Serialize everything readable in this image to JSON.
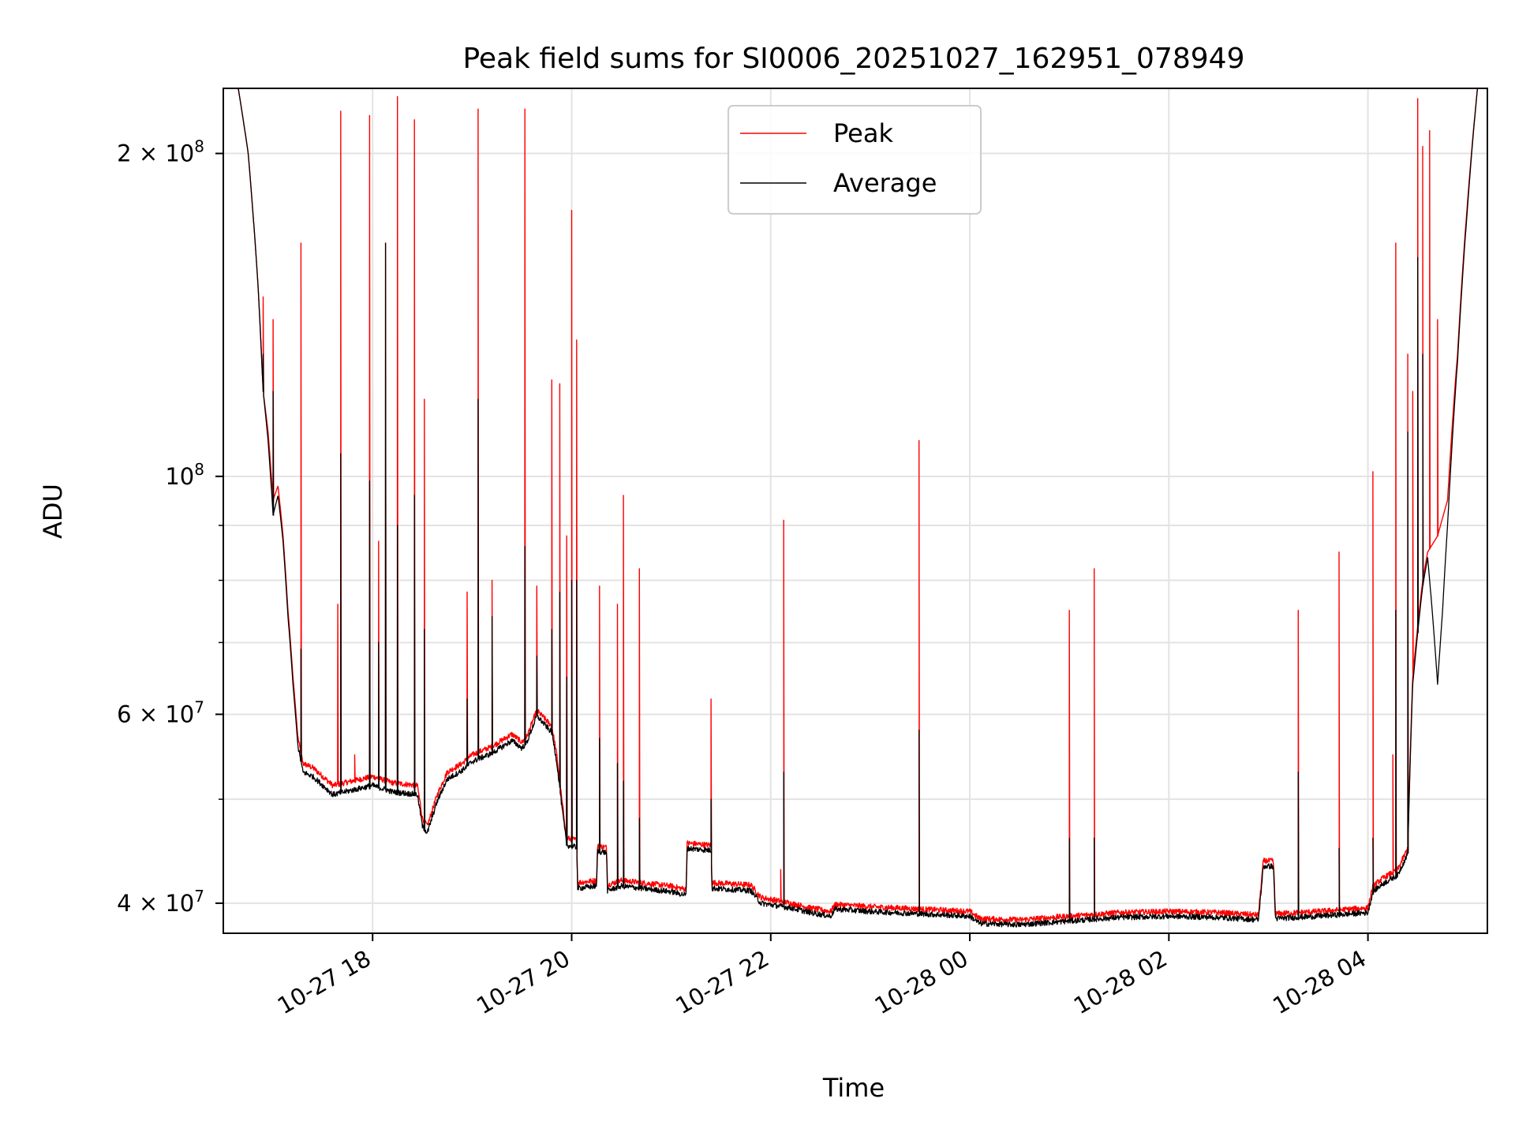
{
  "chart_data": {
    "type": "line",
    "title": "Peak field sums for SI0006_20251027_162951_078949",
    "xlabel": "Time",
    "ylabel": "ADU",
    "yscale": "log",
    "ylim": [
      37500000,
      230000000
    ],
    "xlim_hours": [
      -1.5,
      11.2
    ],
    "grid": true,
    "legend_position": "upper center",
    "x_ticks": [
      {
        "label": "10-27 18",
        "hour": 0
      },
      {
        "label": "10-27 20",
        "hour": 2
      },
      {
        "label": "10-27 22",
        "hour": 4
      },
      {
        "label": "10-28 00",
        "hour": 6
      },
      {
        "label": "10-28 02",
        "hour": 8
      },
      {
        "label": "10-28 04",
        "hour": 10
      }
    ],
    "y_ticks_major": [
      {
        "mantissa": "",
        "exponent": "8",
        "value": 100000000
      },
      {
        "mantissa": "2 ×",
        "exponent": "8",
        "value": 200000000
      },
      {
        "mantissa": "4 ×",
        "exponent": "7",
        "value": 40000000
      },
      {
        "mantissa": "6 ×",
        "exponent": "7",
        "value": 60000000
      }
    ],
    "y_ticks_minor": [
      50000000,
      70000000,
      80000000,
      90000000
    ],
    "series": [
      {
        "name": "Peak",
        "color": "#ff0000",
        "baseline": [
          [
            -1.5,
            230000000
          ],
          [
            -1.35,
            230000000
          ],
          [
            -1.25,
            200000000
          ],
          [
            -1.15,
            150000000
          ],
          [
            -1.1,
            120000000
          ],
          [
            -1.05,
            110000000
          ],
          [
            -1.0,
            95000000
          ],
          [
            -0.95,
            98000000
          ],
          [
            -0.9,
            88000000
          ],
          [
            -0.85,
            75000000
          ],
          [
            -0.8,
            65000000
          ],
          [
            -0.75,
            57000000
          ],
          [
            -0.7,
            54000000
          ],
          [
            -0.6,
            53500000
          ],
          [
            -0.5,
            52500000
          ],
          [
            -0.4,
            51500000
          ],
          [
            -0.2,
            52000000
          ],
          [
            0.0,
            52500000
          ],
          [
            0.2,
            51800000
          ],
          [
            0.45,
            51500000
          ],
          [
            0.5,
            48000000
          ],
          [
            0.55,
            47200000
          ],
          [
            0.65,
            50500000
          ],
          [
            0.75,
            53000000
          ],
          [
            0.9,
            54000000
          ],
          [
            1.0,
            55000000
          ],
          [
            1.2,
            56000000
          ],
          [
            1.4,
            57500000
          ],
          [
            1.5,
            56500000
          ],
          [
            1.55,
            57200000
          ],
          [
            1.65,
            60500000
          ],
          [
            1.8,
            58500000
          ],
          [
            1.85,
            55000000
          ],
          [
            1.9,
            50000000
          ],
          [
            1.95,
            46000000
          ],
          [
            2.05,
            45800000
          ],
          [
            2.06,
            41800000
          ],
          [
            2.25,
            42000000
          ],
          [
            2.26,
            45200000
          ],
          [
            2.35,
            45100000
          ],
          [
            2.36,
            41600000
          ],
          [
            2.5,
            42000000
          ],
          [
            2.6,
            41900000
          ],
          [
            3.0,
            41500000
          ],
          [
            3.15,
            41200000
          ],
          [
            3.16,
            45500000
          ],
          [
            3.4,
            45300000
          ],
          [
            3.41,
            41800000
          ],
          [
            3.8,
            41600000
          ],
          [
            3.9,
            40500000
          ],
          [
            4.2,
            40000000
          ],
          [
            4.4,
            39600000
          ],
          [
            4.6,
            39300000
          ],
          [
            4.65,
            39900000
          ],
          [
            5.0,
            39700000
          ],
          [
            5.5,
            39500000
          ],
          [
            6.0,
            39300000
          ],
          [
            6.1,
            38700000
          ],
          [
            6.5,
            38600000
          ],
          [
            7.0,
            38900000
          ],
          [
            7.5,
            39200000
          ],
          [
            8.0,
            39300000
          ],
          [
            8.5,
            39200000
          ],
          [
            8.9,
            39000000
          ],
          [
            8.95,
            43800000
          ],
          [
            9.05,
            43800000
          ],
          [
            9.07,
            39100000
          ],
          [
            9.5,
            39300000
          ],
          [
            10.0,
            39600000
          ],
          [
            10.05,
            41500000
          ],
          [
            10.15,
            42200000
          ],
          [
            10.3,
            43000000
          ],
          [
            10.4,
            45000000
          ],
          [
            10.45,
            65000000
          ],
          [
            10.55,
            80000000
          ],
          [
            10.6,
            85000000
          ],
          [
            10.7,
            88000000
          ],
          [
            10.8,
            95000000
          ],
          [
            10.9,
            130000000
          ],
          [
            11.0,
            180000000
          ],
          [
            11.1,
            230000000
          ],
          [
            11.2,
            230000000
          ]
        ],
        "spikes": [
          [
            -1.1,
            147000000
          ],
          [
            -1.0,
            140000000
          ],
          [
            -0.72,
            165000000
          ],
          [
            -0.35,
            76000000
          ],
          [
            -0.32,
            219000000
          ],
          [
            -0.18,
            55000000
          ],
          [
            -0.03,
            217000000
          ],
          [
            0.06,
            87000000
          ],
          [
            0.13,
            165000000
          ],
          [
            0.25,
            226000000
          ],
          [
            0.42,
            215000000
          ],
          [
            0.52,
            118000000
          ],
          [
            0.95,
            78000000
          ],
          [
            1.06,
            220000000
          ],
          [
            1.2,
            80000000
          ],
          [
            1.53,
            220000000
          ],
          [
            1.65,
            79000000
          ],
          [
            1.8,
            123000000
          ],
          [
            1.88,
            122000000
          ],
          [
            1.95,
            88000000
          ],
          [
            2.0,
            177000000
          ],
          [
            2.05,
            134000000
          ],
          [
            2.28,
            79000000
          ],
          [
            2.46,
            76000000
          ],
          [
            2.52,
            96000000
          ],
          [
            2.68,
            82000000
          ],
          [
            3.4,
            62000000
          ],
          [
            4.1,
            43000000
          ],
          [
            4.13,
            91000000
          ],
          [
            5.49,
            108000000
          ],
          [
            7.0,
            75000000
          ],
          [
            7.25,
            82000000
          ],
          [
            9.3,
            75000000
          ],
          [
            9.71,
            85000000
          ],
          [
            10.05,
            101000000
          ],
          [
            10.25,
            55000000
          ],
          [
            10.28,
            165000000
          ],
          [
            10.4,
            130000000
          ],
          [
            10.45,
            120000000
          ],
          [
            10.5,
            225000000
          ],
          [
            10.55,
            203000000
          ],
          [
            10.62,
            210000000
          ],
          [
            10.7,
            140000000
          ]
        ]
      },
      {
        "name": "Average",
        "color": "#000000",
        "baseline": [
          [
            -1.5,
            230000000
          ],
          [
            -1.35,
            230000000
          ],
          [
            -1.25,
            200000000
          ],
          [
            -1.15,
            150000000
          ],
          [
            -1.1,
            120000000
          ],
          [
            -1.05,
            108000000
          ],
          [
            -1.0,
            92000000
          ],
          [
            -0.95,
            96000000
          ],
          [
            -0.9,
            87000000
          ],
          [
            -0.85,
            74000000
          ],
          [
            -0.8,
            64000000
          ],
          [
            -0.75,
            56000000
          ],
          [
            -0.7,
            53000000
          ],
          [
            -0.6,
            52500000
          ],
          [
            -0.5,
            51500000
          ],
          [
            -0.4,
            50500000
          ],
          [
            -0.2,
            51000000
          ],
          [
            0.0,
            51500000
          ],
          [
            0.2,
            50800000
          ],
          [
            0.45,
            50500000
          ],
          [
            0.5,
            47200000
          ],
          [
            0.55,
            46500000
          ],
          [
            0.65,
            49800000
          ],
          [
            0.75,
            52200000
          ],
          [
            0.9,
            53200000
          ],
          [
            1.0,
            54200000
          ],
          [
            1.2,
            55200000
          ],
          [
            1.4,
            56700000
          ],
          [
            1.5,
            55800000
          ],
          [
            1.55,
            56500000
          ],
          [
            1.65,
            59800000
          ],
          [
            1.8,
            57700000
          ],
          [
            1.85,
            54200000
          ],
          [
            1.9,
            49300000
          ],
          [
            1.95,
            45300000
          ],
          [
            2.05,
            45100000
          ],
          [
            2.06,
            41300000
          ],
          [
            2.25,
            41500000
          ],
          [
            2.26,
            44700000
          ],
          [
            2.35,
            44600000
          ],
          [
            2.36,
            41100000
          ],
          [
            2.5,
            41500000
          ],
          [
            2.6,
            41400000
          ],
          [
            3.0,
            41000000
          ],
          [
            3.15,
            40700000
          ],
          [
            3.16,
            45000000
          ],
          [
            3.4,
            44800000
          ],
          [
            3.41,
            41300000
          ],
          [
            3.8,
            41100000
          ],
          [
            3.9,
            40000000
          ],
          [
            4.2,
            39600000
          ],
          [
            4.4,
            39200000
          ],
          [
            4.6,
            38900000
          ],
          [
            4.65,
            39500000
          ],
          [
            5.0,
            39300000
          ],
          [
            5.5,
            39100000
          ],
          [
            6.0,
            38900000
          ],
          [
            6.1,
            38300000
          ],
          [
            6.5,
            38200000
          ],
          [
            7.0,
            38500000
          ],
          [
            7.5,
            38800000
          ],
          [
            8.0,
            38900000
          ],
          [
            8.5,
            38800000
          ],
          [
            8.9,
            38600000
          ],
          [
            8.95,
            43300000
          ],
          [
            9.05,
            43300000
          ],
          [
            9.07,
            38700000
          ],
          [
            9.5,
            38900000
          ],
          [
            10.0,
            39200000
          ],
          [
            10.05,
            41000000
          ],
          [
            10.15,
            41700000
          ],
          [
            10.3,
            42500000
          ],
          [
            10.4,
            44500000
          ],
          [
            10.45,
            64000000
          ],
          [
            10.55,
            79000000
          ],
          [
            10.6,
            84000000
          ],
          [
            10.7,
            64000000
          ],
          [
            10.75,
            75000000
          ],
          [
            10.8,
            90000000
          ],
          [
            10.9,
            128000000
          ],
          [
            11.0,
            178000000
          ],
          [
            11.1,
            230000000
          ],
          [
            11.2,
            230000000
          ]
        ],
        "spikes": [
          [
            -1.1,
            130000000
          ],
          [
            -1.0,
            120000000
          ],
          [
            -0.72,
            69000000
          ],
          [
            -0.32,
            105000000
          ],
          [
            -0.03,
            99000000
          ],
          [
            0.06,
            70000000
          ],
          [
            0.13,
            165000000
          ],
          [
            0.25,
            90000000
          ],
          [
            0.42,
            96000000
          ],
          [
            0.52,
            72000000
          ],
          [
            0.95,
            62000000
          ],
          [
            1.06,
            118000000
          ],
          [
            1.2,
            74000000
          ],
          [
            1.53,
            86000000
          ],
          [
            1.65,
            68000000
          ],
          [
            1.8,
            72000000
          ],
          [
            1.88,
            78000000
          ],
          [
            1.95,
            65000000
          ],
          [
            2.0,
            80000000
          ],
          [
            2.05,
            80000000
          ],
          [
            2.28,
            57000000
          ],
          [
            2.46,
            54000000
          ],
          [
            2.52,
            52000000
          ],
          [
            2.68,
            48000000
          ],
          [
            3.4,
            50000000
          ],
          [
            4.13,
            53000000
          ],
          [
            5.49,
            58000000
          ],
          [
            7.0,
            46000000
          ],
          [
            7.25,
            46000000
          ],
          [
            9.3,
            53000000
          ],
          [
            9.71,
            45000000
          ],
          [
            10.05,
            46000000
          ],
          [
            10.28,
            75000000
          ],
          [
            10.4,
            110000000
          ],
          [
            10.5,
            160000000
          ],
          [
            10.55,
            130000000
          ]
        ]
      }
    ]
  }
}
